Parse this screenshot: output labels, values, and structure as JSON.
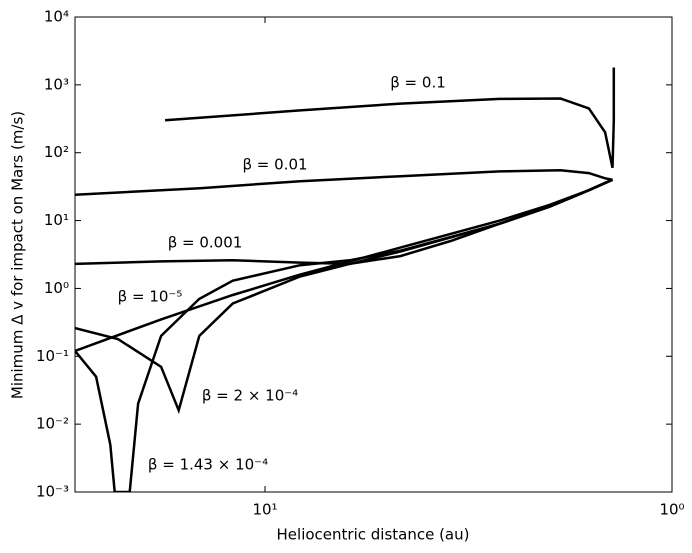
{
  "chart_data": {
    "type": "line",
    "xlabel": "Heliocentric distance (au)",
    "ylabel": "Minimum  Δ v for impact on Mars (m/s)",
    "xscale": "log",
    "yscale": "log",
    "xlim": [
      29.3,
      1
    ],
    "ylim": [
      0.001,
      10000
    ],
    "xticks": [
      {
        "value": 10,
        "label": "10¹"
      },
      {
        "value": 1,
        "label": "10⁰"
      }
    ],
    "yticks": [
      {
        "value": 0.001,
        "label": "10⁻³"
      },
      {
        "value": 0.01,
        "label": "10⁻²"
      },
      {
        "value": 0.1,
        "label": "10⁻¹"
      },
      {
        "value": 1,
        "label": "10⁰"
      },
      {
        "value": 10,
        "label": "10¹"
      },
      {
        "value": 100,
        "label": "10²"
      },
      {
        "value": 1000,
        "label": "10³"
      },
      {
        "value": 10000,
        "label": "10⁴"
      }
    ],
    "series": [
      {
        "name": "β = 0.1",
        "color": "#000000",
        "x": [
          17.6,
          8.2,
          4.65,
          2.65,
          1.88,
          1.6,
          1.46,
          1.4,
          1.39,
          1.39
        ],
        "values": [
          300,
          420,
          530,
          620,
          630,
          450,
          200,
          60,
          300,
          1800
        ]
      },
      {
        "name": "β = 0.01",
        "color": "#000000",
        "x": [
          29.3,
          14.45,
          8.2,
          4.65,
          2.65,
          1.88,
          1.6,
          1.46,
          1.4
        ],
        "values": [
          24,
          30,
          38,
          45,
          53,
          55,
          50,
          42,
          40
        ]
      },
      {
        "name": "β = 0.001",
        "color": "#000000",
        "x": [
          29.3,
          18,
          12,
          8.2,
          6.2,
          4.65,
          3.5,
          2.65,
          2.0,
          1.6,
          1.4
        ],
        "values": [
          2.3,
          2.5,
          2.6,
          2.4,
          2.3,
          3,
          5,
          9,
          16,
          28,
          40
        ]
      },
      {
        "name": "β = 10⁻⁵",
        "color": "#000000",
        "x": [
          29.3,
          18,
          12,
          8.2,
          6.2,
          4.65,
          2.65,
          2.0,
          1.6,
          1.4
        ],
        "values": [
          0.12,
          0.35,
          0.8,
          1.6,
          2.5,
          4,
          10,
          17,
          28,
          40
        ]
      },
      {
        "name": "β = 2 × 10⁻⁴",
        "color": "#000000",
        "x": [
          29.3,
          23,
          18,
          16.3,
          14.5,
          12,
          8.2,
          6.2,
          4.65,
          2.65,
          2.0,
          1.6,
          1.4
        ],
        "values": [
          0.26,
          0.18,
          0.07,
          0.016,
          0.2,
          0.6,
          1.5,
          2.3,
          3.5,
          9,
          16,
          28,
          40
        ]
      },
      {
        "name": "β = 1.43 × 10⁻⁴",
        "color": "#000000",
        "x": [
          29.3,
          26,
          24,
          23.4,
          21.5,
          20.5,
          18,
          14.5,
          12,
          8.2,
          6.2,
          4.65,
          2.65,
          2.0,
          1.6,
          1.4
        ],
        "values": [
          0.12,
          0.05,
          0.005,
          0.001,
          0.001,
          0.02,
          0.2,
          0.7,
          1.3,
          2.2,
          2.6,
          3.6,
          9,
          16,
          28,
          40
        ]
      }
    ]
  }
}
